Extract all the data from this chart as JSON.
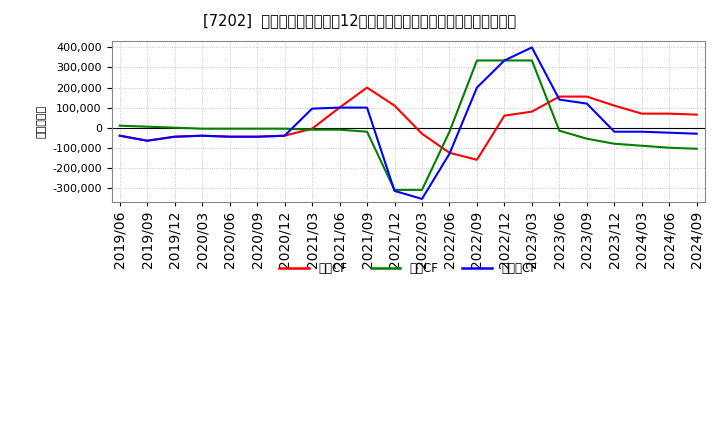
{
  "title": "[7202]  キャッシュフローの12か月移動合計の対前年同期増減額の推移",
  "ylabel": "（百万円）",
  "background_color": "#ffffff",
  "plot_bg_color": "#ffffff",
  "grid_color": "#bbbbbb",
  "ylim": [
    -370000,
    430000
  ],
  "yticks": [
    -300000,
    -200000,
    -100000,
    0,
    100000,
    200000,
    300000,
    400000
  ],
  "x_labels": [
    "2019/06",
    "2019/09",
    "2019/12",
    "2020/03",
    "2020/06",
    "2020/09",
    "2020/12",
    "2021/03",
    "2021/06",
    "2021/09",
    "2021/12",
    "2022/03",
    "2022/06",
    "2022/09",
    "2022/12",
    "2023/03",
    "2023/06",
    "2023/09",
    "2023/12",
    "2024/03",
    "2024/06",
    "2024/09"
  ],
  "series": {
    "営業CF": {
      "color": "#ff0000",
      "values": [
        -40000,
        -65000,
        -45000,
        -40000,
        -45000,
        -45000,
        -40000,
        -5000,
        100000,
        200000,
        110000,
        -30000,
        -125000,
        -160000,
        60000,
        80000,
        155000,
        155000,
        110000,
        70000,
        70000,
        65000
      ]
    },
    "投資CF": {
      "color": "#008000",
      "values": [
        10000,
        5000,
        0,
        -5000,
        -5000,
        -5000,
        -5000,
        -10000,
        -10000,
        -20000,
        -310000,
        -310000,
        -20000,
        335000,
        335000,
        335000,
        -15000,
        -55000,
        -80000,
        -90000,
        -100000,
        -105000
      ]
    },
    "フリーCF": {
      "color": "#0000ff",
      "values": [
        -40000,
        -65000,
        -45000,
        -40000,
        -45000,
        -45000,
        -40000,
        95000,
        100000,
        100000,
        -315000,
        -355000,
        -130000,
        200000,
        335000,
        400000,
        140000,
        120000,
        -20000,
        -20000,
        -25000,
        -30000
      ]
    }
  },
  "legend": [
    "営業CF",
    "投資CF",
    "フリーCF"
  ],
  "legend_colors": [
    "#ff0000",
    "#008000",
    "#0000ff"
  ]
}
